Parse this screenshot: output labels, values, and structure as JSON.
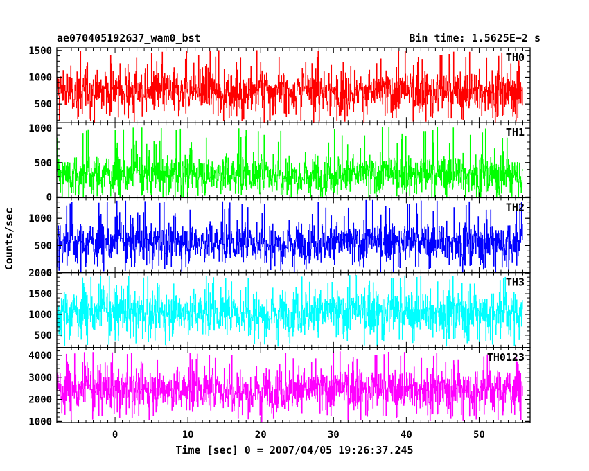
{
  "header": {
    "title": "ae070405192637_wam0_bst",
    "bin_time": "Bin time: 1.5625E−2 s"
  },
  "chart_data": {
    "type": "line",
    "title": "ae070405192637_wam0_bst",
    "xlabel": "Time [sec] 0 = 2007/04/05 19:26:37.245",
    "ylabel": "Counts/sec",
    "xlim": [
      -8,
      57
    ],
    "x_range_data": [
      -8,
      56
    ],
    "bin_time": 0.015625,
    "x_ticks": [
      0,
      10,
      20,
      30,
      40,
      50
    ],
    "panels": [
      {
        "name": "TH0",
        "color": "#ff0000",
        "ylim": [
          150,
          1550
        ],
        "yticks": [
          500,
          1000,
          1500
        ],
        "level": 730,
        "noise_sd": 210,
        "spikes": 1520,
        "min_floor": 150
      },
      {
        "name": "TH1",
        "color": "#00ff00",
        "ylim": [
          -10,
          1080
        ],
        "yticks": [
          0,
          500,
          1000
        ],
        "level": 330,
        "noise_sd": 150,
        "spikes": 1050,
        "min_floor": 0
      },
      {
        "name": "TH2",
        "color": "#0000ff",
        "ylim": [
          0,
          1380
        ],
        "yticks": [
          0,
          500,
          1000
        ],
        "level": 560,
        "noise_sd": 190,
        "spikes": 1370,
        "min_floor": 0
      },
      {
        "name": "TH3",
        "color": "#00ffff",
        "ylim": [
          200,
          2010
        ],
        "yticks": [
          500,
          1000,
          1500,
          2000
        ],
        "level": 1050,
        "noise_sd": 280,
        "spikes": 1990,
        "min_floor": 220
      },
      {
        "name": "TH0123",
        "color": "#ff00ff",
        "ylim": [
          950,
          4350
        ],
        "yticks": [
          1000,
          2000,
          3000,
          4000
        ],
        "level": 2450,
        "noise_sd": 500,
        "spikes": 4250,
        "min_floor": 1000
      }
    ]
  }
}
